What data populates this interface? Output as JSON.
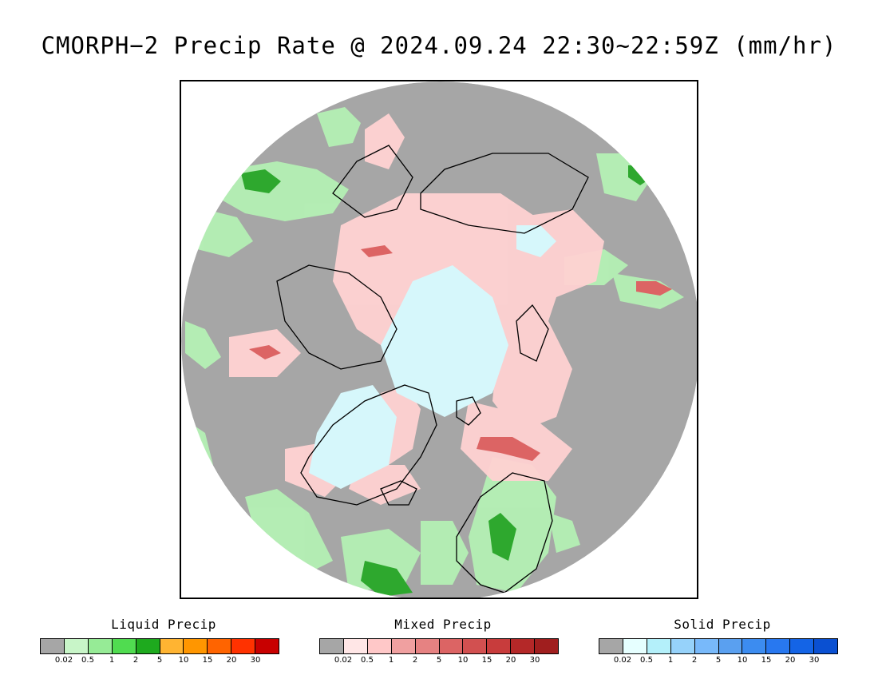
{
  "title": "CMORPH−2 Precip Rate @ 2024.09.24 22:30~22:59Z (mm/hr)",
  "map": {
    "projection": "north-polar-stereographic",
    "background_no_data_color": "#a6a6a6",
    "coast_color": "#000000"
  },
  "legends": [
    {
      "id": "liquid",
      "title": "Liquid Precip",
      "colors": [
        "#a6a6a6",
        "#c8f5c8",
        "#96eb96",
        "#50dc50",
        "#1eaa1e",
        "#ffb432",
        "#ff9600",
        "#ff6400",
        "#ff3200",
        "#c80000"
      ],
      "ticks": [
        "0.02",
        "0.5",
        "1",
        "2",
        "5",
        "10",
        "15",
        "20",
        "30"
      ]
    },
    {
      "id": "mixed",
      "title": "Mixed Precip",
      "colors": [
        "#a6a6a6",
        "#ffe6e6",
        "#ffc8c8",
        "#f0a0a0",
        "#e68282",
        "#dc6464",
        "#d25050",
        "#c83c3c",
        "#b42828",
        "#a01e1e"
      ],
      "ticks": [
        "0.02",
        "0.5",
        "1",
        "2",
        "5",
        "10",
        "15",
        "20",
        "30"
      ]
    },
    {
      "id": "solid",
      "title": "Solid Precip",
      "colors": [
        "#a6a6a6",
        "#e6ffff",
        "#b4f0fa",
        "#96d2fa",
        "#78b9fa",
        "#5aa0f0",
        "#3c8cf0",
        "#2878f0",
        "#1464e6",
        "#0a50d2"
      ],
      "ticks": [
        "0.02",
        "0.5",
        "1",
        "2",
        "5",
        "10",
        "15",
        "20",
        "30"
      ]
    }
  ]
}
